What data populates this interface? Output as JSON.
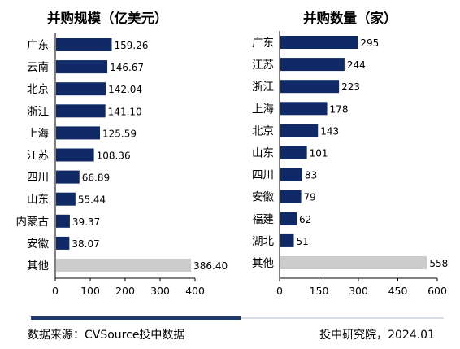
{
  "chart_data": [
    {
      "type": "bar",
      "orientation": "horizontal",
      "title": "并购规模（亿美元）",
      "categories": [
        "广东",
        "云南",
        "北京",
        "浙江",
        "上海",
        "江苏",
        "四川",
        "山东",
        "内蒙古",
        "安徽",
        "其他"
      ],
      "values": [
        159.26,
        146.67,
        142.04,
        141.1,
        125.59,
        108.36,
        66.89,
        55.44,
        39.37,
        38.07,
        386.4
      ],
      "value_labels": [
        "159.26",
        "146.67",
        "142.04",
        "141.10",
        "125.59",
        "108.36",
        "66.89",
        "55.44",
        "39.37",
        "38.07",
        "386.40"
      ],
      "xlim": [
        0,
        400
      ],
      "xticks": [
        0,
        100,
        200,
        300,
        400
      ],
      "grid": false,
      "bar_color": "#0f2a66",
      "other_color": "#cccccc"
    },
    {
      "type": "bar",
      "orientation": "horizontal",
      "title": "并购数量（家）",
      "categories": [
        "广东",
        "江苏",
        "浙江",
        "上海",
        "北京",
        "山东",
        "四川",
        "安徽",
        "福建",
        "湖北",
        "其他"
      ],
      "values": [
        295,
        244,
        223,
        178,
        143,
        101,
        83,
        79,
        62,
        51,
        558
      ],
      "value_labels": [
        "295",
        "244",
        "223",
        "178",
        "143",
        "101",
        "83",
        "79",
        "62",
        "51",
        "558"
      ],
      "xlim": [
        0,
        600
      ],
      "xticks": [
        0,
        150,
        300,
        450,
        600
      ],
      "grid": false,
      "bar_color": "#0f2a66",
      "other_color": "#cccccc"
    }
  ],
  "footer": {
    "source": "数据来源：CVSource投中数据",
    "org": "投中研究院，2024.01"
  }
}
